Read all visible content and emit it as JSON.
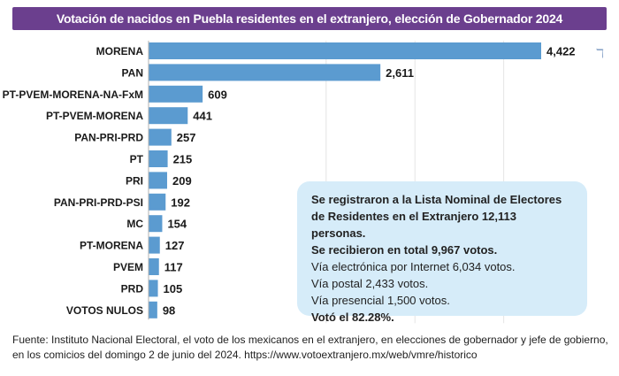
{
  "title": "Votación de nacidos en Puebla residentes en el extranjero, elección de Gobernador 2024",
  "chart_data": {
    "type": "bar",
    "orientation": "horizontal",
    "title": "Votación de nacidos en Puebla residentes en el extranjero, elección de Gobernador 2024",
    "categories": [
      "MORENA",
      "PAN",
      "PT-PVEM-MORENA-NA-FxM",
      "PT-PVEM-MORENA",
      "PAN-PRI-PRD",
      "PT",
      "PRI",
      "PAN-PRI-PRD-PSI",
      "MC",
      "PT-MORENA",
      "PVEM",
      "PRD",
      "VOTOS NULOS"
    ],
    "values": [
      4422,
      2611,
      609,
      441,
      257,
      215,
      209,
      192,
      154,
      127,
      117,
      105,
      98
    ],
    "value_labels": [
      "4,422",
      "2,611",
      "609",
      "441",
      "257",
      "215",
      "209",
      "192",
      "154",
      "127",
      "117",
      "105",
      "98"
    ],
    "xlim": [
      0,
      4422
    ],
    "gridlines": [
      2000,
      3000,
      4000
    ],
    "bar_color": "#5b9bd0",
    "xlabel": "",
    "ylabel": ""
  },
  "callout": {
    "line1": "Se registraron a la Lista Nominal de Electores",
    "line2": "de Residentes en el Extranjero 12,113 personas.",
    "line3": "Se recibieron en total 9,967 votos.",
    "line4": "Vía electrónica por Internet 6,034 votos.",
    "line5": "Vía postal 2,433 votos.",
    "line6": "Vía presencial 1,500 votos.",
    "line7": "Votó el 82.28%."
  },
  "source": "Fuente: Instituto Nacional Electoral, el voto de los mexicanos en el extranjero, en elecciones de gobernador y jefe de gobierno, en los comicios del domingo 2 de junio del 2024. https://www.votoextranjero.mx/web/vmre/historico",
  "edge_glyph": "ℸ",
  "colors": {
    "title_bg": "#6b3f8e",
    "bar": "#5b9bd0",
    "callout_bg": "#d6ecf9"
  }
}
